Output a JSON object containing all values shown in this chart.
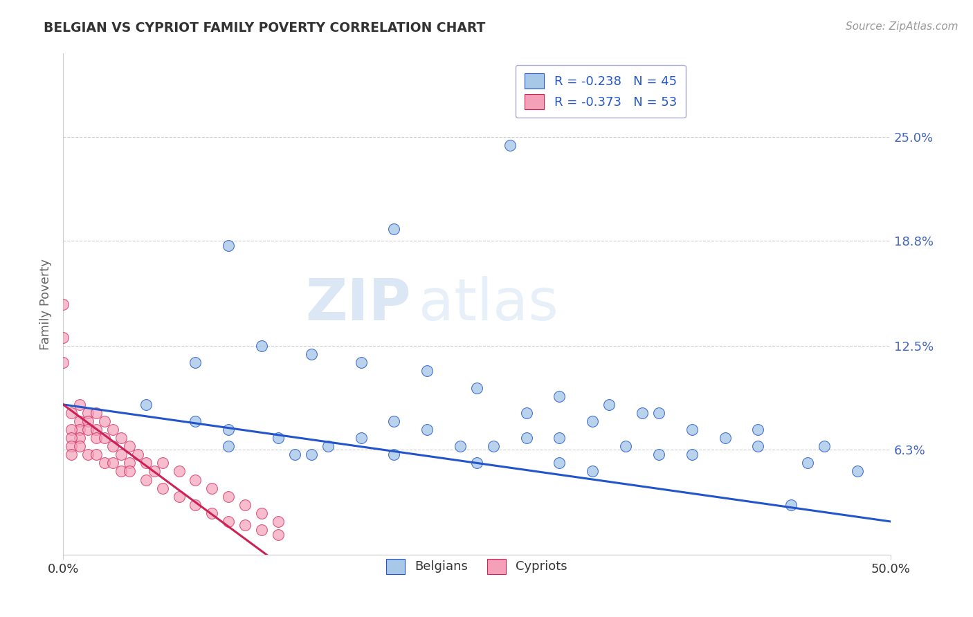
{
  "title": "BELGIAN VS CYPRIOT FAMILY POVERTY CORRELATION CHART",
  "source": "Source: ZipAtlas.com",
  "ylabel": "Family Poverty",
  "xlim": [
    0.0,
    0.5
  ],
  "ylim": [
    0.0,
    0.3
  ],
  "ytick_labels": [
    "",
    "6.3%",
    "12.5%",
    "18.8%",
    "25.0%"
  ],
  "ytick_values": [
    0.0,
    0.063,
    0.125,
    0.188,
    0.25
  ],
  "xtick_labels": [
    "0.0%",
    "50.0%"
  ],
  "xtick_values": [
    0.0,
    0.5
  ],
  "legend_blue_R": "R = -0.238",
  "legend_blue_N": "N = 45",
  "legend_pink_R": "R = -0.373",
  "legend_pink_N": "N = 53",
  "blue_color": "#a8c8e8",
  "pink_color": "#f4a0b8",
  "blue_line_color": "#2255cc",
  "pink_line_color": "#cc2255",
  "watermark_zip": "ZIP",
  "watermark_atlas": "atlas",
  "background_color": "#ffffff",
  "grid_color": "#cccccc",
  "title_color": "#333333",
  "axis_label_color": "#666666",
  "tick_label_color_right": "#4466bb",
  "tick_label_color_bottom": "#333333",
  "blue_scatter_x": [
    0.27,
    0.2,
    0.1,
    0.12,
    0.08,
    0.15,
    0.18,
    0.22,
    0.25,
    0.3,
    0.33,
    0.35,
    0.28,
    0.32,
    0.38,
    0.42,
    0.46,
    0.4,
    0.36,
    0.44,
    0.3,
    0.26,
    0.2,
    0.16,
    0.13,
    0.1,
    0.08,
    0.05,
    0.22,
    0.28,
    0.34,
    0.38,
    0.45,
    0.48,
    0.24,
    0.18,
    0.14,
    0.3,
    0.36,
    0.42,
    0.2,
    0.25,
    0.32,
    0.15,
    0.1
  ],
  "blue_scatter_y": [
    0.245,
    0.195,
    0.185,
    0.125,
    0.115,
    0.12,
    0.115,
    0.11,
    0.1,
    0.095,
    0.09,
    0.085,
    0.085,
    0.08,
    0.075,
    0.075,
    0.065,
    0.07,
    0.085,
    0.03,
    0.07,
    0.065,
    0.08,
    0.065,
    0.07,
    0.075,
    0.08,
    0.09,
    0.075,
    0.07,
    0.065,
    0.06,
    0.055,
    0.05,
    0.065,
    0.07,
    0.06,
    0.055,
    0.06,
    0.065,
    0.06,
    0.055,
    0.05,
    0.06,
    0.065
  ],
  "pink_scatter_x": [
    0.01,
    0.01,
    0.01,
    0.01,
    0.005,
    0.005,
    0.005,
    0.005,
    0.0,
    0.0,
    0.0,
    0.015,
    0.015,
    0.015,
    0.02,
    0.02,
    0.02,
    0.025,
    0.025,
    0.03,
    0.03,
    0.035,
    0.035,
    0.04,
    0.04,
    0.045,
    0.05,
    0.055,
    0.06,
    0.07,
    0.08,
    0.09,
    0.1,
    0.11,
    0.12,
    0.13,
    0.01,
    0.015,
    0.02,
    0.025,
    0.03,
    0.035,
    0.04,
    0.05,
    0.06,
    0.07,
    0.08,
    0.09,
    0.1,
    0.11,
    0.12,
    0.13,
    0.005
  ],
  "pink_scatter_y": [
    0.09,
    0.08,
    0.075,
    0.07,
    0.085,
    0.075,
    0.07,
    0.065,
    0.15,
    0.13,
    0.115,
    0.085,
    0.08,
    0.075,
    0.085,
    0.075,
    0.07,
    0.08,
    0.07,
    0.075,
    0.065,
    0.07,
    0.06,
    0.065,
    0.055,
    0.06,
    0.055,
    0.05,
    0.055,
    0.05,
    0.045,
    0.04,
    0.035,
    0.03,
    0.025,
    0.02,
    0.065,
    0.06,
    0.06,
    0.055,
    0.055,
    0.05,
    0.05,
    0.045,
    0.04,
    0.035,
    0.03,
    0.025,
    0.02,
    0.018,
    0.015,
    0.012,
    0.06
  ]
}
